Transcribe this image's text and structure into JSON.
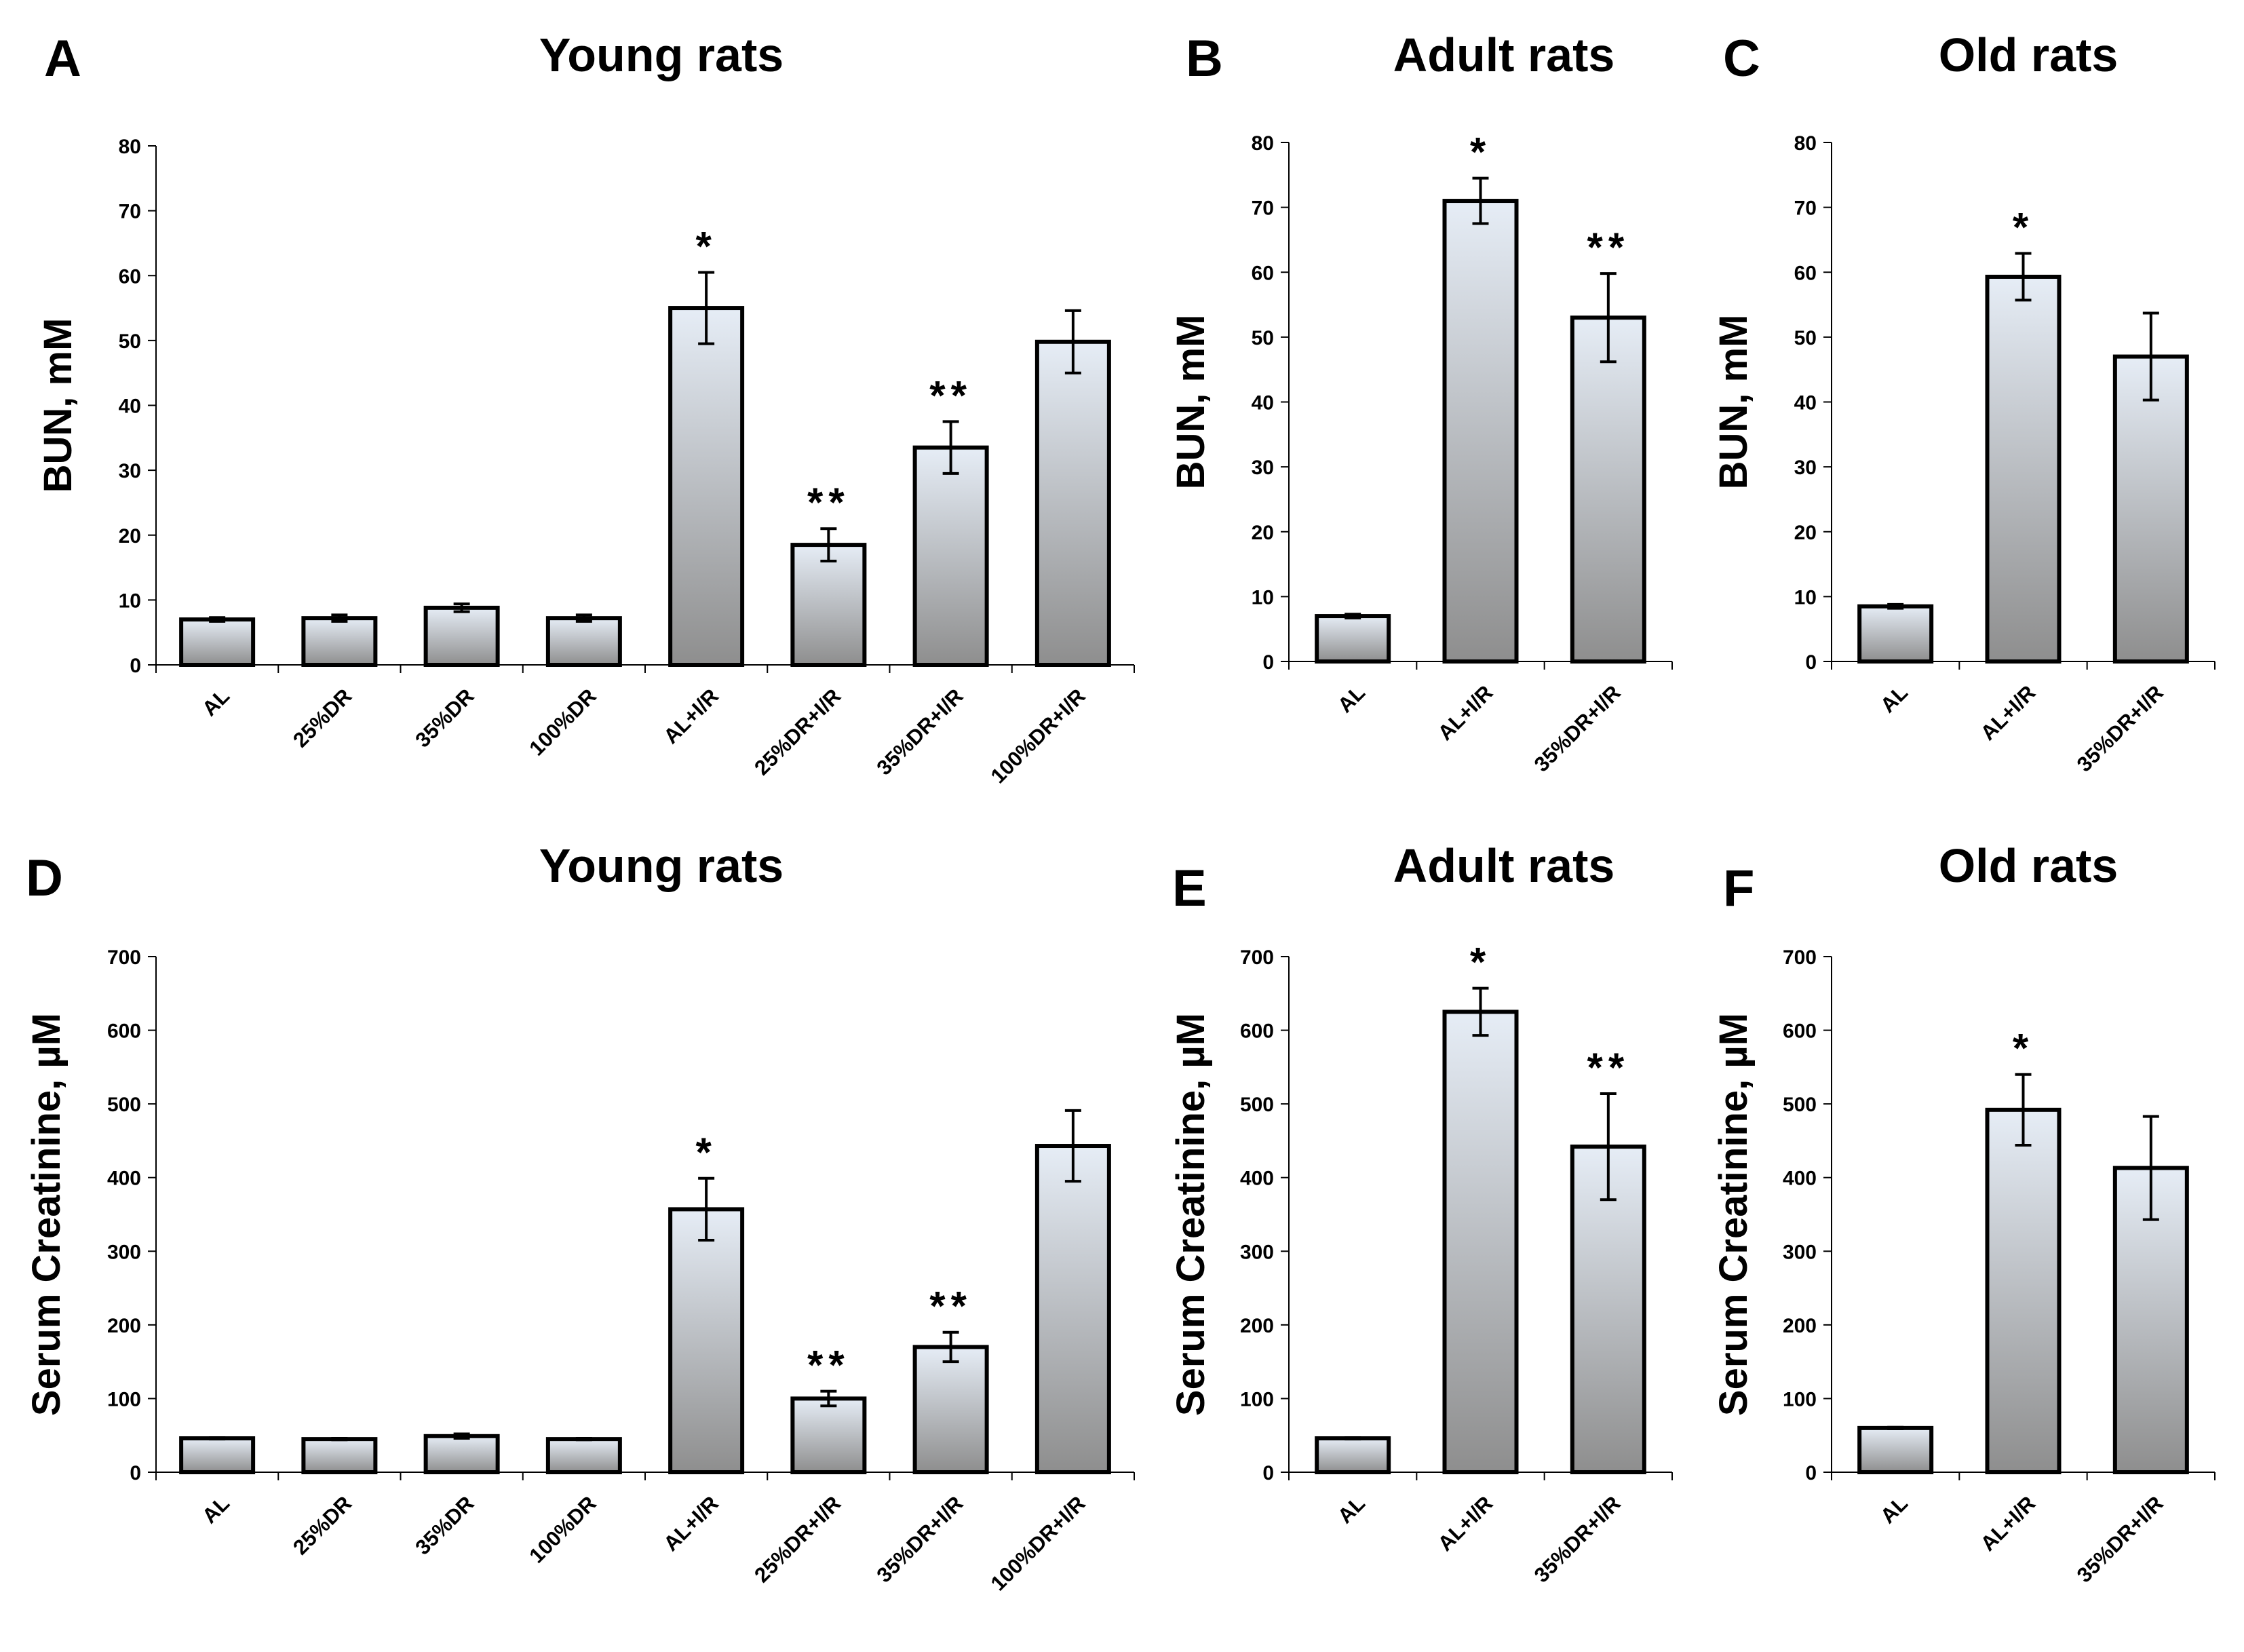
{
  "chart_data": [
    {
      "panel": "A",
      "type": "bar",
      "title": "Young rats",
      "ylabel": "BUN, mM",
      "xlabel": "",
      "ylim": [
        0,
        80
      ],
      "yticks": [
        0,
        10,
        20,
        30,
        40,
        50,
        60,
        70,
        80
      ],
      "categories": [
        "AL",
        "25%DR",
        "35%DR",
        "100%DR",
        "AL+I/R",
        "25%DR+I/R",
        "35%DR+I/R",
        "100%DR+I/R"
      ],
      "values": [
        7,
        7.2,
        8.8,
        7.2,
        55,
        18.5,
        33.5,
        49.8
      ],
      "errors": [
        0.3,
        0.5,
        0.6,
        0.5,
        5.5,
        2.5,
        4,
        4.8
      ],
      "annotations": [
        "",
        "",
        "",
        "",
        "*",
        "**",
        "**",
        ""
      ]
    },
    {
      "panel": "B",
      "type": "bar",
      "title": "Adult rats",
      "ylabel": "BUN, mM",
      "xlabel": "",
      "ylim": [
        0,
        80
      ],
      "yticks": [
        0,
        10,
        20,
        30,
        40,
        50,
        60,
        70,
        80
      ],
      "categories": [
        "AL",
        "AL+I/R",
        "35%DR+I/R"
      ],
      "values": [
        7,
        71,
        53
      ],
      "errors": [
        0.3,
        3.5,
        6.8
      ],
      "annotations": [
        "",
        "*",
        "**"
      ]
    },
    {
      "panel": "C",
      "type": "bar",
      "title": "Old rats",
      "ylabel": "BUN, mM",
      "xlabel": "",
      "ylim": [
        0,
        80
      ],
      "yticks": [
        0,
        10,
        20,
        30,
        40,
        50,
        60,
        70,
        80
      ],
      "categories": [
        "AL",
        "AL+I/R",
        "35%DR+I/R"
      ],
      "values": [
        8.5,
        59.3,
        47
      ],
      "errors": [
        0.3,
        3.6,
        6.7
      ],
      "annotations": [
        "",
        "*",
        ""
      ]
    },
    {
      "panel": "D",
      "type": "bar",
      "title": "Young rats",
      "ylabel": "Serum Creatinine, µM",
      "xlabel": "",
      "ylim": [
        0,
        700
      ],
      "yticks": [
        0,
        100,
        200,
        300,
        400,
        500,
        600,
        700
      ],
      "categories": [
        "AL",
        "25%DR",
        "35%DR",
        "100%DR",
        "AL+I/R",
        "25%DR+I/R",
        "35%DR+I/R",
        "100%DR+I/R"
      ],
      "values": [
        46,
        45,
        49,
        45,
        357,
        100,
        170,
        443
      ],
      "errors": [
        1,
        1,
        3,
        1,
        42,
        10,
        20,
        48
      ],
      "annotations": [
        "",
        "",
        "",
        "",
        "*",
        "**",
        "**",
        ""
      ]
    },
    {
      "panel": "E",
      "type": "bar",
      "title": "Adult rats",
      "ylabel": "Serum Creatinine, µM",
      "xlabel": "",
      "ylim": [
        0,
        700
      ],
      "yticks": [
        0,
        100,
        200,
        300,
        400,
        500,
        600,
        700
      ],
      "categories": [
        "AL",
        "AL+I/R",
        "35%DR+I/R"
      ],
      "values": [
        46,
        625,
        442
      ],
      "errors": [
        1,
        32,
        72
      ],
      "annotations": [
        "",
        "*",
        "**"
      ]
    },
    {
      "panel": "F",
      "type": "bar",
      "title": "Old rats",
      "ylabel": "Serum Creatinine, µM",
      "xlabel": "",
      "ylim": [
        0,
        700
      ],
      "yticks": [
        0,
        100,
        200,
        300,
        400,
        500,
        600,
        700
      ],
      "categories": [
        "AL",
        "AL+I/R",
        "35%DR+I/R"
      ],
      "values": [
        60,
        492,
        413
      ],
      "errors": [
        1,
        48,
        70
      ],
      "annotations": [
        "",
        "*",
        ""
      ]
    }
  ],
  "colors": {
    "bar_top": "#e6edf6",
    "bar_bottom": "#8e8e8e",
    "stroke": "#000000"
  }
}
